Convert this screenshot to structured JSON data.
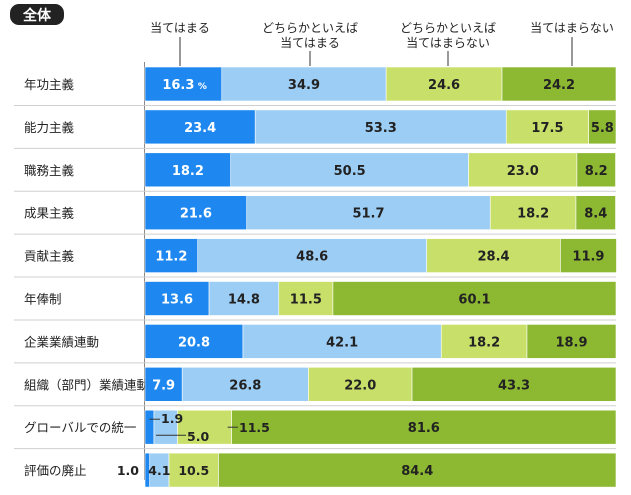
{
  "badge": "全体",
  "legend": [
    {
      "line1": "当てはまる",
      "line2": ""
    },
    {
      "line1": "どちらかといえば",
      "line2": "当てはまる"
    },
    {
      "line1": "どちらかといえば",
      "line2": "当てはまらない"
    },
    {
      "line1": "当てはまらない",
      "line2": ""
    }
  ],
  "percent_unit": "%",
  "colors": {
    "s1": "#1e88f0",
    "s2": "#9ccdf4",
    "s3": "#c8e06a",
    "s4": "#8cb832",
    "grid": "#cfcfcf",
    "badge": "#222222"
  },
  "chart_data": {
    "type": "bar",
    "stacked": true,
    "orientation": "horizontal",
    "xlim": [
      0,
      100
    ],
    "categories": [
      "年功主義",
      "能力主義",
      "職務主義",
      "成果主義",
      "貢献主義",
      "年俸制",
      "企業業績連動",
      "組織（部門）業績連動",
      "グローバルでの統一",
      "評価の廃止"
    ],
    "series": [
      {
        "name": "当てはまる",
        "values": [
          16.3,
          23.4,
          18.2,
          21.6,
          11.2,
          13.6,
          20.8,
          7.9,
          1.9,
          1.0
        ]
      },
      {
        "name": "どちらかといえば当てはまる",
        "values": [
          34.9,
          53.3,
          50.5,
          51.7,
          48.6,
          14.8,
          42.1,
          26.8,
          5.0,
          4.1
        ]
      },
      {
        "name": "どちらかといえば当てはまらない",
        "values": [
          24.6,
          17.5,
          23.0,
          18.2,
          28.4,
          11.5,
          18.2,
          22.0,
          11.5,
          10.5
        ]
      },
      {
        "name": "当てはまらない",
        "values": [
          24.2,
          5.8,
          8.2,
          8.4,
          11.9,
          60.1,
          18.9,
          43.3,
          81.6,
          84.4
        ]
      }
    ],
    "labels": [
      [
        "16.3",
        "34.9",
        "24.6",
        "24.2"
      ],
      [
        "23.4",
        "53.3",
        "17.5",
        "5.8"
      ],
      [
        "18.2",
        "50.5",
        "23.0",
        "8.2"
      ],
      [
        "21.6",
        "51.7",
        "18.2",
        "8.4"
      ],
      [
        "11.2",
        "48.6",
        "28.4",
        "11.9"
      ],
      [
        "13.6",
        "14.8",
        "11.5",
        "60.1"
      ],
      [
        "20.8",
        "42.1",
        "18.2",
        "18.9"
      ],
      [
        "7.9",
        "26.8",
        "22.0",
        "43.3"
      ],
      [
        "1.9",
        "5.0",
        "11.5",
        "81.6"
      ],
      [
        "1.0",
        "4.1",
        "10.5",
        "84.4"
      ]
    ]
  }
}
